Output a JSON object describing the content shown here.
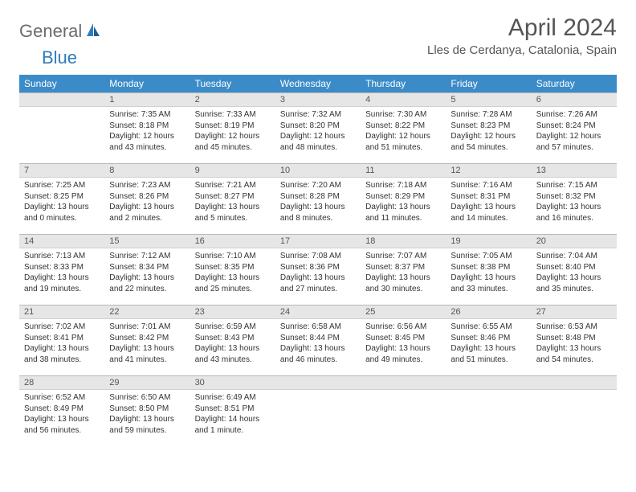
{
  "brand": {
    "general": "General",
    "blue": "Blue"
  },
  "header": {
    "month_title": "April 2024",
    "location": "Lles de Cerdanya, Catalonia, Spain"
  },
  "colors": {
    "header_bg": "#3b8bc8",
    "header_text": "#ffffff",
    "daynum_bg": "#e6e6e6",
    "body_text": "#333333",
    "title_text": "#555555"
  },
  "weekdays": [
    "Sunday",
    "Monday",
    "Tuesday",
    "Wednesday",
    "Thursday",
    "Friday",
    "Saturday"
  ],
  "start_offset": 1,
  "days": [
    {
      "n": 1,
      "sunrise": "7:35 AM",
      "sunset": "8:18 PM",
      "daylight": "12 hours and 43 minutes."
    },
    {
      "n": 2,
      "sunrise": "7:33 AM",
      "sunset": "8:19 PM",
      "daylight": "12 hours and 45 minutes."
    },
    {
      "n": 3,
      "sunrise": "7:32 AM",
      "sunset": "8:20 PM",
      "daylight": "12 hours and 48 minutes."
    },
    {
      "n": 4,
      "sunrise": "7:30 AM",
      "sunset": "8:22 PM",
      "daylight": "12 hours and 51 minutes."
    },
    {
      "n": 5,
      "sunrise": "7:28 AM",
      "sunset": "8:23 PM",
      "daylight": "12 hours and 54 minutes."
    },
    {
      "n": 6,
      "sunrise": "7:26 AM",
      "sunset": "8:24 PM",
      "daylight": "12 hours and 57 minutes."
    },
    {
      "n": 7,
      "sunrise": "7:25 AM",
      "sunset": "8:25 PM",
      "daylight": "13 hours and 0 minutes."
    },
    {
      "n": 8,
      "sunrise": "7:23 AM",
      "sunset": "8:26 PM",
      "daylight": "13 hours and 2 minutes."
    },
    {
      "n": 9,
      "sunrise": "7:21 AM",
      "sunset": "8:27 PM",
      "daylight": "13 hours and 5 minutes."
    },
    {
      "n": 10,
      "sunrise": "7:20 AM",
      "sunset": "8:28 PM",
      "daylight": "13 hours and 8 minutes."
    },
    {
      "n": 11,
      "sunrise": "7:18 AM",
      "sunset": "8:29 PM",
      "daylight": "13 hours and 11 minutes."
    },
    {
      "n": 12,
      "sunrise": "7:16 AM",
      "sunset": "8:31 PM",
      "daylight": "13 hours and 14 minutes."
    },
    {
      "n": 13,
      "sunrise": "7:15 AM",
      "sunset": "8:32 PM",
      "daylight": "13 hours and 16 minutes."
    },
    {
      "n": 14,
      "sunrise": "7:13 AM",
      "sunset": "8:33 PM",
      "daylight": "13 hours and 19 minutes."
    },
    {
      "n": 15,
      "sunrise": "7:12 AM",
      "sunset": "8:34 PM",
      "daylight": "13 hours and 22 minutes."
    },
    {
      "n": 16,
      "sunrise": "7:10 AM",
      "sunset": "8:35 PM",
      "daylight": "13 hours and 25 minutes."
    },
    {
      "n": 17,
      "sunrise": "7:08 AM",
      "sunset": "8:36 PM",
      "daylight": "13 hours and 27 minutes."
    },
    {
      "n": 18,
      "sunrise": "7:07 AM",
      "sunset": "8:37 PM",
      "daylight": "13 hours and 30 minutes."
    },
    {
      "n": 19,
      "sunrise": "7:05 AM",
      "sunset": "8:38 PM",
      "daylight": "13 hours and 33 minutes."
    },
    {
      "n": 20,
      "sunrise": "7:04 AM",
      "sunset": "8:40 PM",
      "daylight": "13 hours and 35 minutes."
    },
    {
      "n": 21,
      "sunrise": "7:02 AM",
      "sunset": "8:41 PM",
      "daylight": "13 hours and 38 minutes."
    },
    {
      "n": 22,
      "sunrise": "7:01 AM",
      "sunset": "8:42 PM",
      "daylight": "13 hours and 41 minutes."
    },
    {
      "n": 23,
      "sunrise": "6:59 AM",
      "sunset": "8:43 PM",
      "daylight": "13 hours and 43 minutes."
    },
    {
      "n": 24,
      "sunrise": "6:58 AM",
      "sunset": "8:44 PM",
      "daylight": "13 hours and 46 minutes."
    },
    {
      "n": 25,
      "sunrise": "6:56 AM",
      "sunset": "8:45 PM",
      "daylight": "13 hours and 49 minutes."
    },
    {
      "n": 26,
      "sunrise": "6:55 AM",
      "sunset": "8:46 PM",
      "daylight": "13 hours and 51 minutes."
    },
    {
      "n": 27,
      "sunrise": "6:53 AM",
      "sunset": "8:48 PM",
      "daylight": "13 hours and 54 minutes."
    },
    {
      "n": 28,
      "sunrise": "6:52 AM",
      "sunset": "8:49 PM",
      "daylight": "13 hours and 56 minutes."
    },
    {
      "n": 29,
      "sunrise": "6:50 AM",
      "sunset": "8:50 PM",
      "daylight": "13 hours and 59 minutes."
    },
    {
      "n": 30,
      "sunrise": "6:49 AM",
      "sunset": "8:51 PM",
      "daylight": "14 hours and 1 minute."
    }
  ],
  "labels": {
    "sunrise": "Sunrise:",
    "sunset": "Sunset:",
    "daylight": "Daylight:"
  }
}
